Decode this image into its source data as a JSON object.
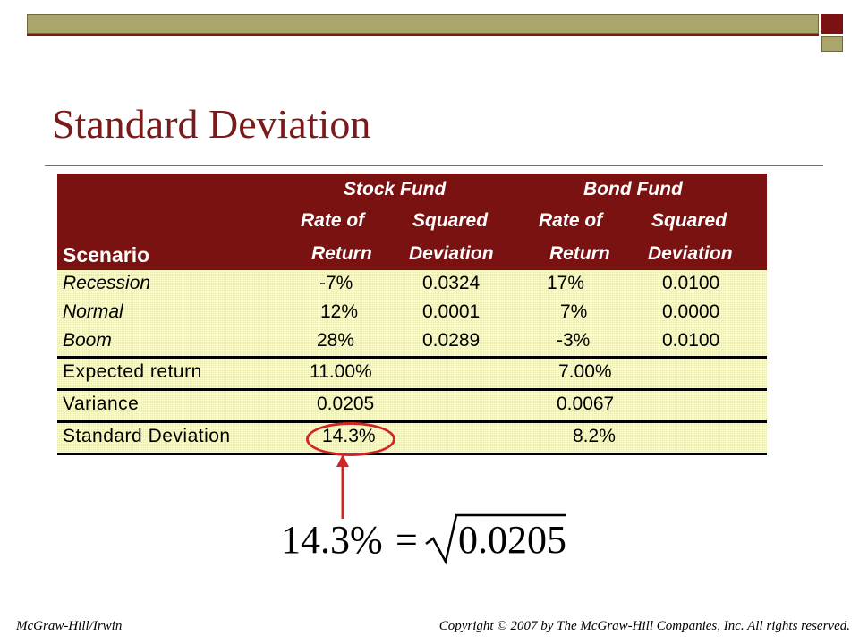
{
  "title": "Standard Deviation",
  "table": {
    "group_headers": [
      "Stock Fund",
      "Bond Fund"
    ],
    "subheaders_line1": [
      "Rate of",
      "Squared",
      "Rate of",
      "Squared"
    ],
    "subheaders_line2": [
      "Return",
      "Deviation",
      "Return",
      "Deviation"
    ],
    "scenario_header": "Scenario",
    "rows": [
      {
        "label": "Recession",
        "stock_return": "-7%",
        "stock_sqdev": "0.0324",
        "bond_return": "17%",
        "bond_sqdev": "0.0100"
      },
      {
        "label": "Normal",
        "stock_return": "12%",
        "stock_sqdev": "0.0001",
        "bond_return": "7%",
        "bond_sqdev": "0.0000"
      },
      {
        "label": "Boom",
        "stock_return": "28%",
        "stock_sqdev": "0.0289",
        "bond_return": "-3%",
        "bond_sqdev": "0.0100"
      }
    ],
    "summary": [
      {
        "label": "Expected return",
        "stock": "11.00%",
        "bond": "7.00%"
      },
      {
        "label": "Variance",
        "stock": "0.0205",
        "bond": "0.0067"
      },
      {
        "label": "Standard Deviation",
        "stock": "14.3%",
        "bond": "8.2%"
      }
    ]
  },
  "formula": {
    "lhs": "14.3%",
    "equals": "=",
    "radicand": "0.0205"
  },
  "footer": {
    "left": "McGraw-Hill/Irwin",
    "right": "Copyright © 2007 by The McGraw-Hill  Companies, Inc. All rights reserved."
  },
  "colors": {
    "title": "#7a1a1a",
    "header_bg": "#7a1212",
    "body_bg": "#ffffc4",
    "highlight": "#d12525",
    "bar": "#a9a56b"
  }
}
